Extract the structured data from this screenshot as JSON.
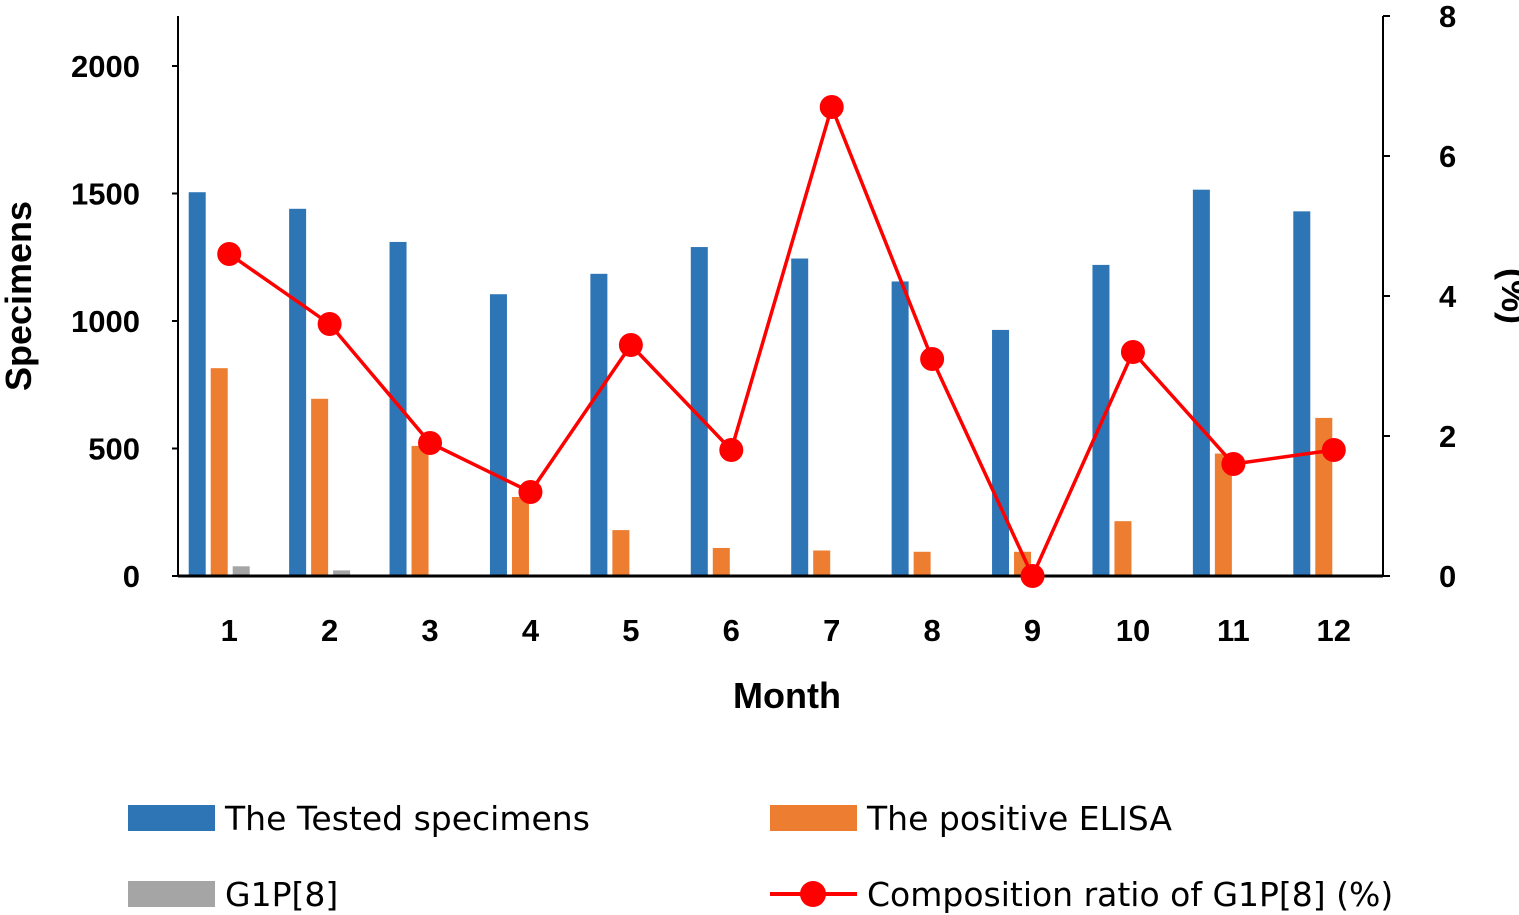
{
  "chart_data": {
    "type": "bar",
    "title": "",
    "xlabel": "Month",
    "ylabel": "Specimens",
    "y2label": "(%)",
    "categories": [
      "1",
      "2",
      "3",
      "4",
      "5",
      "6",
      "7",
      "8",
      "9",
      "10",
      "11",
      "12"
    ],
    "ylim": [
      0,
      2200
    ],
    "y_ticks": [
      "0",
      "500",
      "1000",
      "1500",
      "2000"
    ],
    "y2lim": [
      0,
      8
    ],
    "y2_ticks": [
      "0",
      "2",
      "4",
      "6",
      "8"
    ],
    "grid": false,
    "legend_position": "bottom",
    "series": [
      {
        "name": "The Tested specimens",
        "type": "bar",
        "color": "#2E75B6",
        "values": [
          1505,
          1440,
          1310,
          1105,
          1185,
          1290,
          1245,
          1155,
          965,
          1220,
          1515,
          1430
        ]
      },
      {
        "name": "The positive ELISA",
        "type": "bar",
        "color": "#ED7D31",
        "values": [
          815,
          695,
          510,
          310,
          180,
          110,
          100,
          95,
          95,
          215,
          480,
          620
        ]
      },
      {
        "name": "G1P[8]",
        "type": "bar",
        "color": "#A5A5A5",
        "values": [
          38,
          22,
          0,
          0,
          0,
          0,
          0,
          0,
          0,
          0,
          0,
          5
        ]
      },
      {
        "name": "Composition ratio of G1P[8] (%)",
        "type": "line",
        "axis": "right",
        "color": "#FF0000",
        "values": [
          4.6,
          3.6,
          1.9,
          1.2,
          3.3,
          1.8,
          6.7,
          3.1,
          0.0,
          3.2,
          1.6,
          1.8
        ]
      }
    ]
  }
}
